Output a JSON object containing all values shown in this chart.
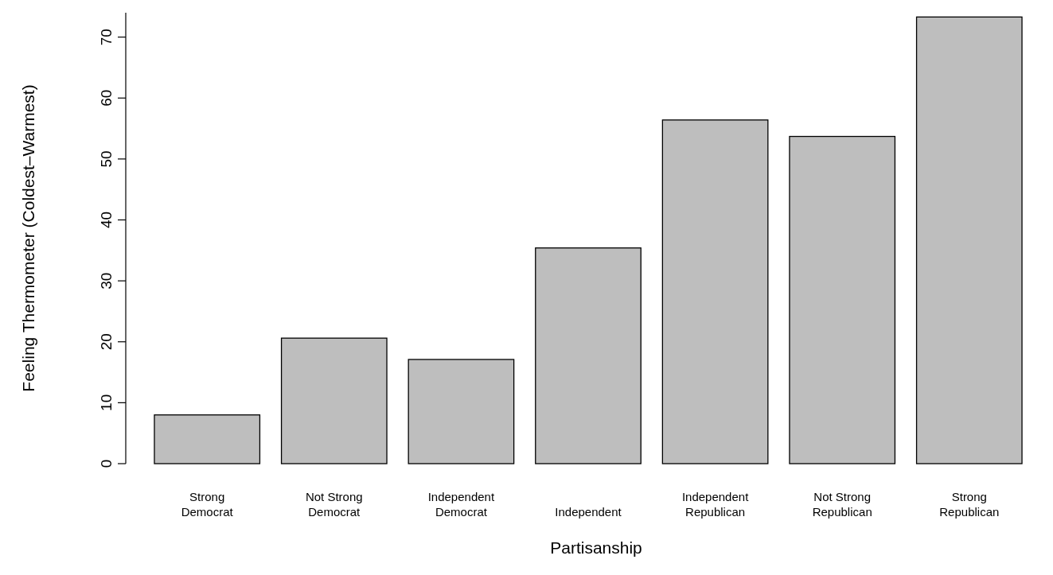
{
  "chart_data": {
    "type": "bar",
    "xlabel": "Partisanship",
    "ylabel": "Feeling Thermometer (Coldest–Warmest)",
    "categories": [
      "Strong\nDemocrat",
      "Not Strong\nDemocrat",
      "Independent\nDemocrat",
      "Independent",
      "Independent\nRepublican",
      "Not Strong\nRepublican",
      "Strong\nRepublican"
    ],
    "values": [
      8.0,
      20.6,
      17.1,
      35.4,
      56.4,
      53.7,
      73.3
    ],
    "color": "#bebebe",
    "ylim": [
      0,
      74
    ],
    "yticks": [
      0,
      10,
      20,
      30,
      40,
      50,
      60,
      70
    ],
    "grid": false
  }
}
